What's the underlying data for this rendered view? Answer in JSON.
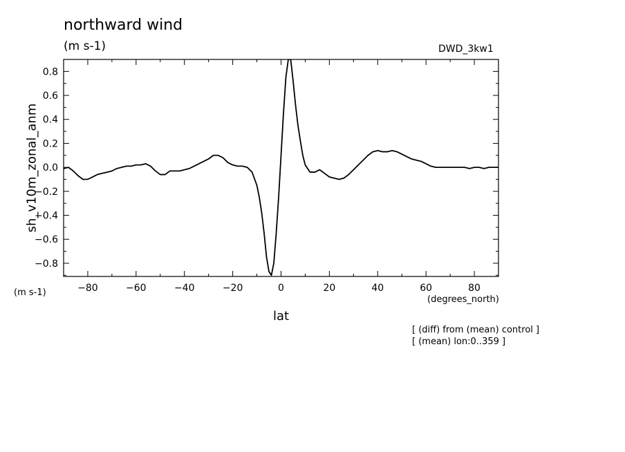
{
  "chart_data": {
    "type": "line",
    "title": "northward wind",
    "units": "(m s-1)",
    "dataset": "DWD_3kw1",
    "ylabel": "sh_v10m_zonal_anm",
    "y_units": "(m s-1)",
    "xlabel": "lat",
    "x_units": "(degrees_north)",
    "notes": [
      "[ (diff) from (mean) control ]",
      "[ (mean) lon:0..359 ]"
    ],
    "xlim": [
      -90,
      90
    ],
    "ylim": [
      -0.91,
      0.9
    ],
    "xticks": [
      -80,
      -60,
      -40,
      -20,
      0,
      20,
      40,
      60,
      80
    ],
    "xtick_labels": [
      "−80",
      "−60",
      "−40",
      "−20",
      "0",
      "20",
      "40",
      "60",
      "80"
    ],
    "yticks": [
      -0.8,
      -0.6,
      -0.4,
      -0.2,
      0.0,
      0.2,
      0.4,
      0.6,
      0.8
    ],
    "ytick_labels": [
      "−0.8",
      "−0.6",
      "−0.4",
      "−0.2",
      "0.0",
      "0.2",
      "0.4",
      "0.6",
      "0.8"
    ],
    "grid": false,
    "series": [
      {
        "color": "#000000",
        "x": [
          -90,
          -88,
          -86,
          -84,
          -82,
          -80,
          -78,
          -76,
          -74,
          -72,
          -70,
          -68,
          -66,
          -64,
          -62,
          -60,
          -58,
          -56,
          -54,
          -52,
          -50,
          -48,
          -46,
          -44,
          -42,
          -40,
          -38,
          -36,
          -34,
          -32,
          -30,
          -28,
          -26,
          -24,
          -22,
          -20,
          -18,
          -16,
          -14,
          -12,
          -10,
          -9,
          -8,
          -7,
          -6,
          -5,
          -4,
          -3,
          -2,
          -1,
          0,
          1,
          2,
          3,
          4,
          5,
          6,
          7,
          8,
          9,
          10,
          12,
          14,
          16,
          18,
          20,
          22,
          24,
          26,
          28,
          30,
          32,
          34,
          36,
          38,
          40,
          42,
          44,
          46,
          48,
          50,
          52,
          54,
          56,
          58,
          60,
          62,
          64,
          66,
          68,
          70,
          72,
          74,
          76,
          78,
          80,
          82,
          84,
          86,
          88,
          90
        ],
        "y": [
          -0.01,
          0.0,
          -0.03,
          -0.07,
          -0.1,
          -0.1,
          -0.08,
          -0.06,
          -0.05,
          -0.04,
          -0.03,
          -0.01,
          0.0,
          0.01,
          0.01,
          0.02,
          0.02,
          0.03,
          0.01,
          -0.03,
          -0.06,
          -0.06,
          -0.03,
          -0.03,
          -0.03,
          -0.02,
          -0.01,
          0.01,
          0.03,
          0.05,
          0.07,
          0.1,
          0.1,
          0.08,
          0.04,
          0.02,
          0.01,
          0.01,
          0.0,
          -0.04,
          -0.15,
          -0.25,
          -0.38,
          -0.55,
          -0.75,
          -0.87,
          -0.9,
          -0.8,
          -0.55,
          -0.25,
          0.1,
          0.45,
          0.75,
          0.9,
          0.9,
          0.72,
          0.52,
          0.35,
          0.22,
          0.1,
          0.02,
          -0.04,
          -0.04,
          -0.02,
          -0.05,
          -0.08,
          -0.09,
          -0.1,
          -0.09,
          -0.06,
          -0.02,
          0.02,
          0.06,
          0.1,
          0.13,
          0.14,
          0.13,
          0.13,
          0.14,
          0.13,
          0.11,
          0.09,
          0.07,
          0.06,
          0.05,
          0.03,
          0.01,
          0.0,
          0.0,
          0.0,
          0.0,
          0.0,
          0.0,
          0.0,
          -0.01,
          0.0,
          0.0,
          -0.01,
          0.0,
          0.0,
          0.0
        ]
      }
    ]
  }
}
